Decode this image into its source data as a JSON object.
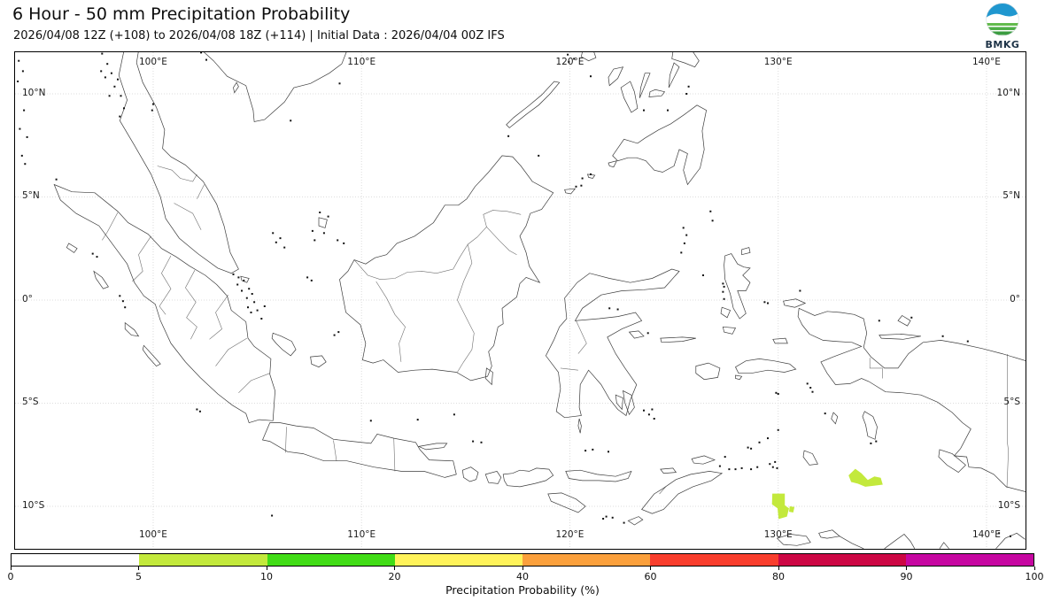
{
  "header": {
    "title": "6 Hour - 50 mm Precipitation Probability",
    "subtitle": "2026/04/08 12Z (+108) to 2026/04/08 18Z (+114) | Initial Data : 2026/04/04 00Z IFS"
  },
  "logo": {
    "label": "BMKG"
  },
  "map": {
    "lon_ticks": [
      "100°E",
      "110°E",
      "120°E",
      "130°E",
      "140°E"
    ],
    "lat_ticks": [
      "10°N",
      "5°N",
      "0°",
      "5°S",
      "10°S"
    ]
  },
  "colorbar": {
    "label": "Precipitation Probability (%)",
    "tick_labels": [
      "0",
      "5",
      "10",
      "20",
      "40",
      "60",
      "80",
      "90",
      "100"
    ],
    "segment_colors": [
      "#ffffff",
      "#c3e93c",
      "#41dc16",
      "#fff35a",
      "#fba03c",
      "#f93e2d",
      "#cc0744",
      "#c607a1"
    ]
  },
  "overlay": {
    "patch_color": "#c3e93c",
    "patch_probability_range_pct": "5-10",
    "patch_count": 3
  }
}
